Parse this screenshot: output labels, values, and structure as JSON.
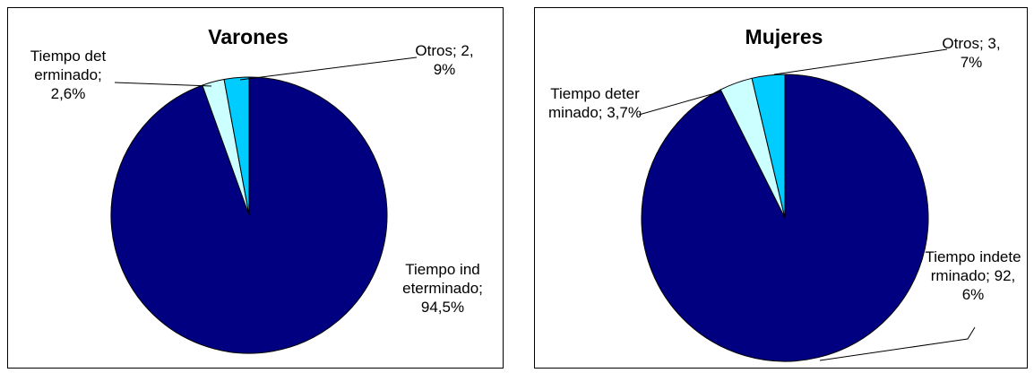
{
  "chart_data": [
    {
      "type": "pie",
      "title": "Varones",
      "values": [
        94.5,
        2.6,
        2.9
      ],
      "value_labels": [
        "Tiempo indeterminado; 94,5%",
        "Tiempo determinado; 2,6%",
        "Otros; 2,9%"
      ],
      "colors": [
        "#000080",
        "#ccffff",
        "#00ccff"
      ]
    },
    {
      "type": "pie",
      "title": "Mujeres",
      "values": [
        92.6,
        3.7,
        3.7
      ],
      "value_labels": [
        "Tiempo indeterminado; 92,6%",
        "Tiempo determinado; 3,7%",
        "Otros; 3,7%"
      ],
      "colors": [
        "#000080",
        "#ccffff",
        "#00ccff"
      ]
    }
  ]
}
